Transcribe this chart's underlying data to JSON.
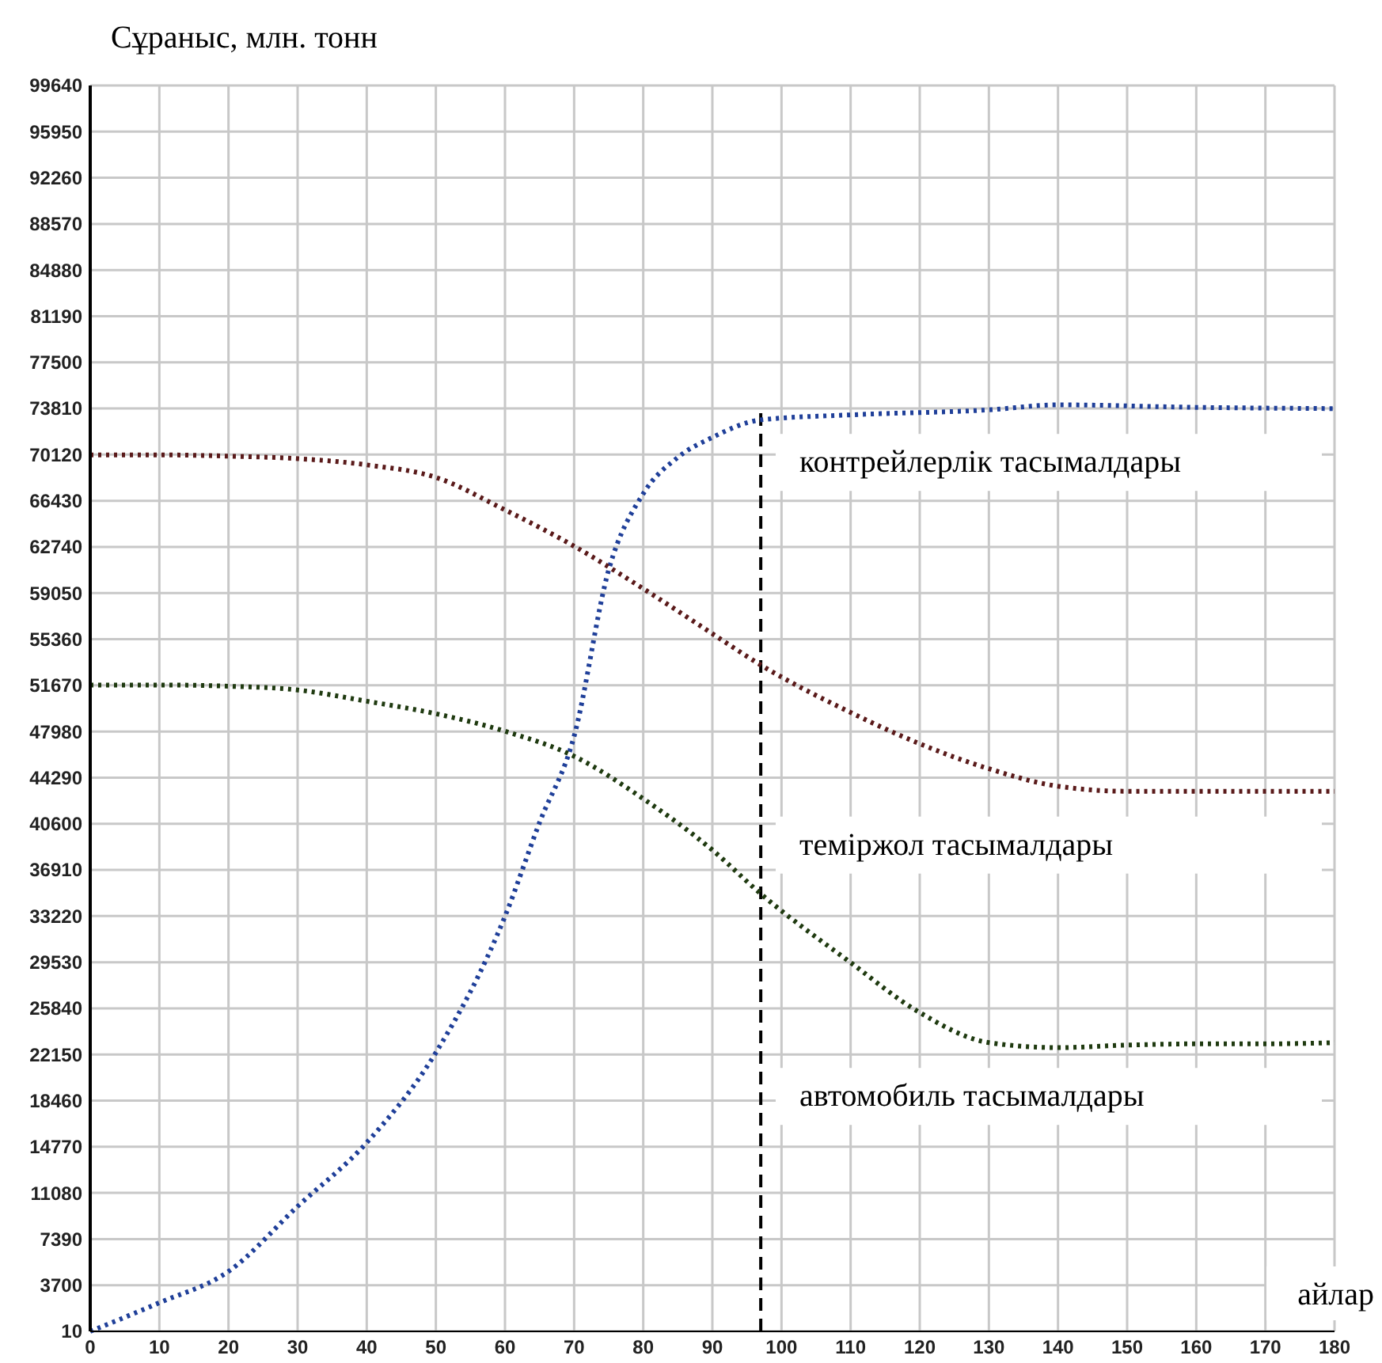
{
  "chart_data": {
    "type": "line",
    "ylabel": "Сұраныс, млн. тонн",
    "xlabel": "айлар",
    "xlim": [
      0,
      180
    ],
    "xticks": [
      0,
      10,
      20,
      30,
      40,
      50,
      60,
      70,
      80,
      90,
      100,
      110,
      120,
      130,
      140,
      150,
      160,
      170,
      180
    ],
    "ylim": [
      10,
      99640
    ],
    "yticks": [
      10,
      3700,
      7390,
      11080,
      14770,
      18460,
      22150,
      25840,
      29530,
      33220,
      36910,
      40600,
      44290,
      47980,
      51670,
      55360,
      59050,
      62740,
      66430,
      70120,
      73810,
      77500,
      81190,
      84880,
      88570,
      92260,
      95950,
      99640
    ],
    "grid": true,
    "line_style": "dotted",
    "marker": "none",
    "ref_lines": [
      {
        "axis": "x",
        "value": 97,
        "line_style": "dashed",
        "color": "#000000"
      }
    ],
    "series": [
      {
        "name": "контрейлерлік тасымалдары",
        "color": "#1f3f99",
        "x": [
          0,
          10,
          20,
          30,
          40,
          50,
          60,
          65,
          70,
          75,
          80,
          85,
          90,
          97,
          110,
          130,
          140,
          160,
          180
        ],
        "values": [
          10,
          2300,
          4800,
          10000,
          15100,
          22300,
          33200,
          40700,
          47600,
          60900,
          67000,
          69900,
          71500,
          72900,
          73300,
          73700,
          74100,
          73900,
          73800
        ]
      },
      {
        "name": "теміржол тасымалдары",
        "color": "#5a1a1a",
        "x": [
          0,
          10,
          20,
          30,
          40,
          50,
          60,
          70,
          80,
          90,
          97,
          110,
          120,
          130,
          140,
          150,
          160,
          170,
          180
        ],
        "values": [
          70100,
          70100,
          70000,
          69800,
          69300,
          68300,
          65700,
          62800,
          59400,
          55800,
          53300,
          49500,
          47000,
          45000,
          43600,
          43200,
          43200,
          43200,
          43200
        ]
      },
      {
        "name": "автомобиль тасымалдары",
        "color": "#1f3a10",
        "x": [
          0,
          10,
          20,
          30,
          40,
          50,
          60,
          70,
          80,
          90,
          97,
          110,
          120,
          130,
          140,
          150,
          160,
          170,
          180
        ],
        "values": [
          51700,
          51700,
          51600,
          51300,
          50400,
          49400,
          48000,
          46000,
          42600,
          38500,
          35000,
          29500,
          25500,
          23100,
          22700,
          22900,
          23000,
          23000,
          23100
        ]
      }
    ]
  }
}
